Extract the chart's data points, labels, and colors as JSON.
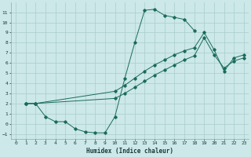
{
  "xlabel": "Humidex (Indice chaleur)",
  "bg_color": "#cce8e8",
  "grid_color": "#aacccc",
  "line_color": "#1a6b5a",
  "xlim": [
    -0.5,
    23.5
  ],
  "ylim": [
    -1.5,
    12.0
  ],
  "xticks": [
    0,
    1,
    2,
    3,
    4,
    5,
    6,
    7,
    8,
    9,
    10,
    11,
    12,
    13,
    14,
    15,
    16,
    17,
    18,
    19,
    20,
    21,
    22,
    23
  ],
  "yticks": [
    -1,
    0,
    1,
    2,
    3,
    4,
    5,
    6,
    7,
    8,
    9,
    10,
    11
  ],
  "s1x": [
    1,
    2,
    3,
    4,
    5,
    6,
    7,
    8,
    9,
    10,
    11,
    12,
    13,
    14,
    15,
    16,
    17,
    18
  ],
  "s1y": [
    2,
    2,
    0.7,
    0.2,
    0.2,
    -0.5,
    -0.8,
    -0.9,
    -0.9,
    0.7,
    4.5,
    8.0,
    11.2,
    11.3,
    10.7,
    10.5,
    10.3,
    9.2
  ],
  "s2x": [
    1,
    2,
    10,
    11,
    12,
    13,
    14,
    15,
    16,
    17,
    18,
    19,
    20,
    21,
    22,
    23
  ],
  "s2y": [
    2,
    2,
    3.2,
    3.8,
    4.5,
    5.2,
    5.8,
    6.3,
    6.8,
    7.2,
    7.5,
    9.0,
    7.3,
    5.2,
    6.5,
    6.8
  ],
  "s3x": [
    1,
    2,
    10,
    11,
    12,
    13,
    14,
    15,
    16,
    17,
    18,
    19,
    20,
    21,
    22,
    23
  ],
  "s3y": [
    2,
    2,
    2.5,
    3.0,
    3.6,
    4.2,
    4.8,
    5.3,
    5.8,
    6.3,
    6.7,
    8.5,
    6.8,
    5.5,
    6.2,
    6.5
  ]
}
